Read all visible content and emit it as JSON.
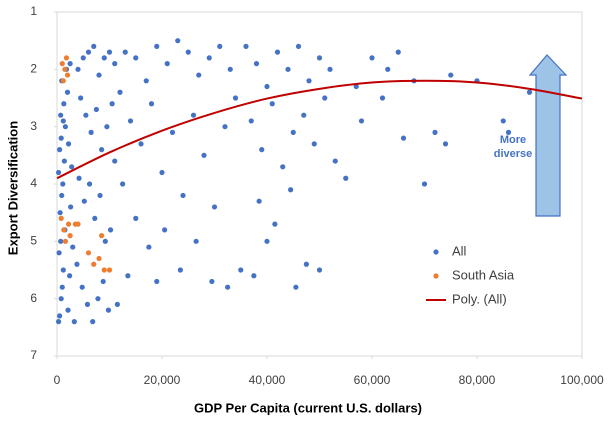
{
  "chart_data": {
    "type": "scatter",
    "x_label": "GDP Per Capita (current U.S. dollars)",
    "y_label": "Export Diversification",
    "xlim": [
      0,
      100000
    ],
    "xticks": [
      0,
      {
        "value": 20000,
        "label": "20,000"
      },
      {
        "value": 40000,
        "label": "40,000"
      },
      {
        "value": 60000,
        "label": "60,000"
      },
      {
        "value": 80000,
        "label": "80,000"
      },
      {
        "value": 100000,
        "label": "100,000"
      }
    ],
    "ylim": [
      1,
      7
    ],
    "yticks": [
      1,
      2,
      3,
      4,
      5,
      6,
      7
    ],
    "y_inverted": true,
    "grid": false,
    "legend": "right",
    "annotation_lines": [
      "More",
      "diverse"
    ],
    "series": [
      {
        "name": "All",
        "color": "#4472c4",
        "mode": "markers",
        "x": [
          300,
          500,
          800,
          1000,
          1200,
          400,
          700,
          1500,
          600,
          900,
          1100,
          300,
          1400,
          500,
          800,
          1600,
          700,
          1300,
          2000,
          900,
          1800,
          2500,
          1200,
          2200,
          2800,
          2600,
          3000,
          2400,
          2100,
          3300,
          4000,
          5000,
          6000,
          7000,
          8000,
          9000,
          10000,
          11000,
          4500,
          5500,
          6500,
          7500,
          8500,
          9500,
          10500,
          4200,
          5200,
          6200,
          7200,
          8200,
          9200,
          10200,
          3800,
          4800,
          5800,
          6800,
          7800,
          8800,
          9800,
          11500,
          11000,
          12000,
          13000,
          15000,
          17000,
          19000,
          21000,
          23000,
          25000,
          27000,
          29000,
          31000,
          33000,
          14000,
          16000,
          18000,
          20000,
          22000,
          24000,
          26000,
          28000,
          30000,
          32000,
          34000,
          15000,
          17500,
          20500,
          23500,
          26500,
          29500,
          32500,
          35000,
          19000,
          13500,
          12500,
          36000,
          38000,
          40000,
          42000,
          44000,
          46000,
          48000,
          50000,
          52000,
          37000,
          39000,
          41000,
          43000,
          45000,
          47000,
          49000,
          51000,
          38500,
          41500,
          44500,
          47500,
          50000,
          37500,
          45500,
          40000,
          55000,
          57000,
          60000,
          62000,
          65000,
          66000,
          68000,
          70000,
          72000,
          74000,
          75000,
          80000,
          85000,
          86000,
          90000,
          58000,
          63000,
          53000
        ],
        "values": [
          6.4,
          6.3,
          6.0,
          5.8,
          5.5,
          5.2,
          5.0,
          4.8,
          4.5,
          4.2,
          4.0,
          3.8,
          3.6,
          3.4,
          3.2,
          3.0,
          2.8,
          2.6,
          2.4,
          2.2,
          2.0,
          1.9,
          2.9,
          3.3,
          3.7,
          4.4,
          5.1,
          5.6,
          6.2,
          6.4,
          2.0,
          1.8,
          1.7,
          1.6,
          2.1,
          1.8,
          1.7,
          1.9,
          2.5,
          2.8,
          3.1,
          2.7,
          3.4,
          3.0,
          2.6,
          3.9,
          4.3,
          4.0,
          4.6,
          4.2,
          5.0,
          4.8,
          5.4,
          5.8,
          6.1,
          6.4,
          6.0,
          5.7,
          6.2,
          6.1,
          3.6,
          2.4,
          1.7,
          1.8,
          2.2,
          1.6,
          1.9,
          1.5,
          1.7,
          2.1,
          1.8,
          1.6,
          2.0,
          2.9,
          3.3,
          2.6,
          3.8,
          3.1,
          4.2,
          2.8,
          3.5,
          4.4,
          3.0,
          2.5,
          4.6,
          5.1,
          4.8,
          5.5,
          5.0,
          5.7,
          5.8,
          5.5,
          5.7,
          5.6,
          4.0,
          1.6,
          1.9,
          2.3,
          1.7,
          2.0,
          1.6,
          2.2,
          1.8,
          2.0,
          2.9,
          3.4,
          2.6,
          3.7,
          3.1,
          2.8,
          3.3,
          2.5,
          4.3,
          4.7,
          4.1,
          5.4,
          5.5,
          5.6,
          5.8,
          5.0,
          3.9,
          2.3,
          1.8,
          2.5,
          1.7,
          3.2,
          2.2,
          4.0,
          3.1,
          3.3,
          2.1,
          2.2,
          2.9,
          3.1,
          2.4,
          2.9,
          2.0,
          3.6
        ]
      },
      {
        "name": "South Asia",
        "color": "#ed7d31",
        "mode": "markers",
        "x": [
          1000,
          1500,
          1200,
          2000,
          800,
          1300,
          1600,
          2200,
          3500,
          4000,
          6000,
          7000,
          8000,
          9000,
          10000,
          8500,
          1800,
          2500
        ],
        "values": [
          1.9,
          2.0,
          2.2,
          2.1,
          4.6,
          4.8,
          5.0,
          4.7,
          4.7,
          4.7,
          5.2,
          5.4,
          5.3,
          5.5,
          5.5,
          4.9,
          1.8,
          4.9
        ]
      },
      {
        "name": "Poly. (All)",
        "color": "#c00000",
        "mode": "line",
        "x": [
          0,
          10000,
          20000,
          30000,
          40000,
          50000,
          60000,
          70000,
          80000,
          90000,
          100000
        ],
        "values": [
          3.9,
          3.45,
          3.07,
          2.76,
          2.51,
          2.34,
          2.23,
          2.2,
          2.23,
          2.34,
          2.51
        ]
      }
    ]
  }
}
